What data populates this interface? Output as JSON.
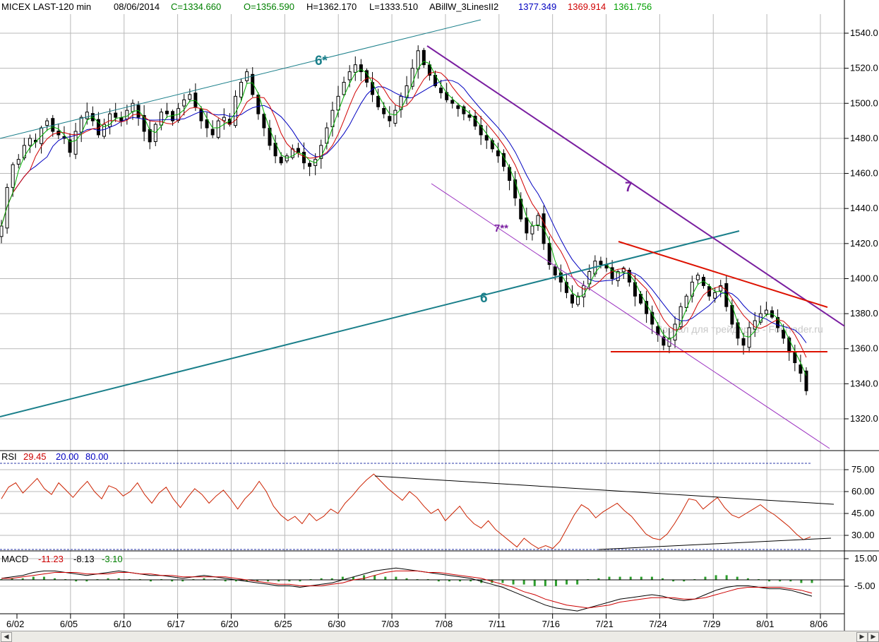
{
  "header": {
    "symbol": "MICEX LAST-120 min",
    "date": "08/06/2014",
    "close": "C=1334.660",
    "open": "O=1356.590",
    "high": "H=1362.170",
    "low": "L=1333.510",
    "indicator": "ABillW_3LinesII2",
    "line1": "1377.349",
    "line2": "1369.914",
    "line3": "1361.756"
  },
  "watermark": "Портал для трейдеров - ForTrader.ru",
  "annotations": {
    "a6star": "6*",
    "a6": "6",
    "a7": "7",
    "a7star": "7**"
  },
  "rsi_header": {
    "label": "RSI",
    "value": "29.45",
    "low": "20.00",
    "high": "80.00"
  },
  "macd_header": {
    "label": "MACD",
    "v1": "-11.23",
    "v2": "-8.13",
    "v3": "-3.10"
  },
  "colors": {
    "close": "#008000",
    "line1": "#0000c0",
    "line2": "#d00000",
    "line3": "#00a000",
    "channel": "#1a7f8a",
    "downtrend": "#7a1fa0",
    "triangle": "#dd1100",
    "rsi": "#cc2200"
  },
  "chart_data": [
    {
      "type": "candlestick",
      "x_tick_labels": [
        "6/02",
        "6/05",
        "6/10",
        "6/17",
        "6/20",
        "6/25",
        "6/30",
        "7/03",
        "7/08",
        "7/11",
        "7/16",
        "7/21",
        "7/24",
        "7/29",
        "8/01",
        "8/06"
      ],
      "y_ticks": [
        "1540.0",
        "1520.0",
        "1500.0",
        "1480.0",
        "1460.0",
        "1440.0",
        "1420.0",
        "1400.0",
        "1380.0",
        "1360.0",
        "1340.0",
        "1320.0"
      ],
      "ylim": [
        1308,
        1552
      ],
      "closes": [
        1430,
        1452,
        1465,
        1468,
        1476,
        1480,
        1478,
        1486,
        1490,
        1484,
        1482,
        1480,
        1472,
        1484,
        1492,
        1495,
        1490,
        1482,
        1488,
        1494,
        1492,
        1490,
        1496,
        1500,
        1492,
        1484,
        1478,
        1488,
        1495,
        1494,
        1490,
        1497,
        1502,
        1505,
        1498,
        1490,
        1486,
        1482,
        1490,
        1492,
        1488,
        1504,
        1512,
        1518,
        1505,
        1494,
        1486,
        1476,
        1470,
        1466,
        1470,
        1474,
        1472,
        1466,
        1464,
        1468,
        1476,
        1486,
        1496,
        1504,
        1512,
        1518,
        1522,
        1518,
        1512,
        1505,
        1498,
        1494,
        1490,
        1496,
        1504,
        1510,
        1520,
        1530,
        1522,
        1516,
        1510,
        1506,
        1502,
        1500,
        1497,
        1494,
        1492,
        1487,
        1482,
        1479,
        1474,
        1470,
        1464,
        1456,
        1446,
        1434,
        1426,
        1430,
        1436,
        1420,
        1408,
        1402,
        1398,
        1392,
        1386,
        1390,
        1396,
        1404,
        1410,
        1408,
        1406,
        1400,
        1404,
        1406,
        1398,
        1390,
        1386,
        1380,
        1374,
        1368,
        1362,
        1366,
        1374,
        1384,
        1390,
        1398,
        1402,
        1396,
        1390,
        1392,
        1396,
        1384,
        1374,
        1366,
        1362,
        1372,
        1376,
        1380,
        1382,
        1378,
        1372,
        1366,
        1358,
        1352,
        1346,
        1336
      ],
      "ma_blue_lastprint": 1377.349,
      "ma_red_lastprint": 1369.914,
      "ma_green_lastprint": 1361.756
    },
    {
      "type": "line",
      "name": "RSI",
      "y_ticks": [
        "75.00",
        "60.00",
        "45.00",
        "30.00"
      ],
      "ylim": [
        14,
        86
      ],
      "levels": [
        20,
        80
      ],
      "values": [
        55,
        63,
        66,
        59,
        64,
        69,
        62,
        58,
        66,
        61,
        56,
        62,
        67,
        60,
        55,
        64,
        62,
        57,
        60,
        66,
        58,
        52,
        59,
        63,
        55,
        49,
        56,
        62,
        58,
        52,
        57,
        61,
        55,
        48,
        55,
        60,
        67,
        60,
        50,
        44,
        40,
        43,
        38,
        45,
        40,
        43,
        48,
        45,
        52,
        57,
        63,
        68,
        72,
        67,
        62,
        58,
        54,
        60,
        56,
        50,
        45,
        48,
        40,
        45,
        50,
        43,
        38,
        35,
        40,
        34,
        30,
        26,
        22,
        28,
        24,
        21,
        23,
        21,
        26,
        35,
        44,
        51,
        48,
        42,
        46,
        49,
        52,
        47,
        43,
        37,
        31,
        28,
        27,
        31,
        38,
        46,
        55,
        54,
        48,
        52,
        56,
        49,
        44,
        42,
        45,
        48,
        51,
        47,
        44,
        40,
        36,
        31,
        27,
        29
      ]
    },
    {
      "type": "line",
      "name": "MACD",
      "y_ticks": [
        "15.00",
        "-5.00"
      ],
      "ylim": [
        -24,
        22
      ],
      "zero_line": 0,
      "macd": [
        1,
        2,
        3,
        5,
        6,
        6,
        5,
        4,
        3,
        4,
        5,
        6,
        5,
        4,
        3,
        3,
        2,
        1,
        2,
        3,
        2,
        1,
        0,
        -1,
        -2,
        -3,
        -4,
        -4,
        -5,
        -4,
        -3,
        -2,
        0,
        2,
        4,
        6,
        7,
        8,
        7,
        6,
        5,
        4,
        3,
        2,
        1,
        -1,
        -3,
        -5,
        -8,
        -11,
        -14,
        -17,
        -19,
        -20,
        -21,
        -19,
        -17,
        -15,
        -13,
        -12,
        -11,
        -10,
        -11,
        -13,
        -14,
        -13,
        -10,
        -7,
        -5,
        -4,
        -4,
        -5,
        -6,
        -6,
        -7,
        -9,
        -11
      ],
      "signal": [
        1,
        1,
        2,
        3,
        4,
        5,
        5,
        5,
        4,
        4,
        4,
        5,
        5,
        4,
        4,
        3,
        3,
        2,
        2,
        2,
        2,
        2,
        1,
        0,
        -1,
        -2,
        -3,
        -3,
        -4,
        -4,
        -4,
        -3,
        -2,
        0,
        1,
        3,
        5,
        6,
        6,
        6,
        5,
        5,
        4,
        3,
        2,
        1,
        -1,
        -3,
        -5,
        -8,
        -10,
        -13,
        -15,
        -17,
        -18,
        -19,
        -18,
        -17,
        -15,
        -14,
        -13,
        -12,
        -12,
        -12,
        -13,
        -13,
        -12,
        -10,
        -8,
        -6,
        -5,
        -5,
        -5,
        -5,
        -6,
        -7,
        -9
      ]
    }
  ]
}
